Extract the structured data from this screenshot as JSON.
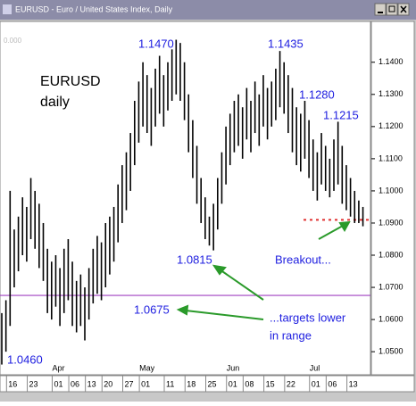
{
  "window_title": "EURUSD - Euro / United States Index, Daily",
  "chart_data": {
    "type": "hilo",
    "title": "EURUSD",
    "subtitle": "daily",
    "color": "#000000",
    "corner_label": "0.000",
    "categories": [
      null,
      null,
      "16",
      null,
      null,
      null,
      null,
      "23",
      null,
      null,
      null,
      null,
      null,
      "01",
      null,
      null,
      null,
      "06",
      null,
      null,
      null,
      "13",
      null,
      null,
      null,
      "20",
      null,
      null,
      null,
      null,
      "27",
      null,
      null,
      null,
      "01",
      null,
      null,
      null,
      null,
      null,
      "11",
      null,
      null,
      null,
      null,
      "18",
      null,
      null,
      null,
      null,
      "25",
      null,
      null,
      null,
      null,
      "01",
      null,
      null,
      null,
      "08",
      null,
      null,
      null,
      null,
      "15",
      null,
      null,
      null,
      null,
      "22",
      null,
      null,
      null,
      null,
      null,
      "01",
      null,
      null,
      null,
      "06",
      null,
      null,
      null,
      null,
      "13",
      null,
      null,
      null
    ],
    "months": [
      null,
      null,
      null,
      null,
      null,
      null,
      null,
      null,
      null,
      null,
      null,
      null,
      null,
      "Apr",
      null,
      null,
      null,
      null,
      null,
      null,
      null,
      null,
      null,
      null,
      null,
      null,
      null,
      null,
      null,
      null,
      null,
      null,
      null,
      null,
      "May",
      null,
      null,
      null,
      null,
      null,
      null,
      null,
      null,
      null,
      null,
      null,
      null,
      null,
      null,
      null,
      null,
      null,
      null,
      null,
      null,
      "Jun",
      null,
      null,
      null,
      null,
      null,
      null,
      null,
      null,
      null,
      null,
      null,
      null,
      null,
      null,
      null,
      null,
      null,
      null,
      null,
      "Jul",
      null,
      null,
      null,
      null,
      null,
      null,
      null,
      null,
      null,
      null,
      null,
      null
    ],
    "high": [
      1.062,
      1.066,
      1.1,
      1.088,
      1.092,
      1.098,
      1.095,
      1.104,
      1.1,
      1.096,
      1.09,
      1.082,
      1.078,
      1.08,
      1.076,
      1.082,
      1.085,
      1.078,
      1.072,
      1.074,
      1.07,
      1.076,
      1.082,
      1.086,
      1.084,
      1.09,
      1.092,
      1.095,
      1.102,
      1.108,
      1.112,
      1.118,
      1.128,
      1.134,
      1.14,
      1.136,
      1.132,
      1.138,
      1.142,
      1.136,
      1.14,
      1.144,
      1.147,
      1.146,
      1.14,
      1.13,
      1.122,
      1.114,
      1.104,
      1.098,
      1.092,
      1.096,
      1.104,
      1.112,
      1.12,
      1.124,
      1.128,
      1.13,
      1.126,
      1.132,
      1.128,
      1.134,
      1.13,
      1.136,
      1.132,
      1.134,
      1.138,
      1.1435,
      1.14,
      1.136,
      1.132,
      1.126,
      1.124,
      1.128,
      1.122,
      1.116,
      1.112,
      1.118,
      1.114,
      1.11,
      1.116,
      1.1215,
      1.114,
      1.108,
      1.104,
      1.1,
      1.097,
      1.095
    ],
    "low": [
      1.046,
      1.05,
      1.058,
      1.07,
      1.075,
      1.08,
      1.078,
      1.085,
      1.082,
      1.076,
      1.072,
      1.062,
      1.06,
      1.064,
      1.058,
      1.062,
      1.066,
      1.058,
      1.056,
      1.058,
      1.0535,
      1.06,
      1.065,
      1.068,
      1.066,
      1.07,
      1.074,
      1.078,
      1.084,
      1.09,
      1.094,
      1.1,
      1.108,
      1.115,
      1.12,
      1.118,
      1.114,
      1.12,
      1.124,
      1.12,
      1.125,
      1.128,
      1.13,
      1.128,
      1.122,
      1.112,
      1.104,
      1.096,
      1.09,
      1.085,
      1.083,
      1.0815,
      1.088,
      1.096,
      1.102,
      1.108,
      1.112,
      1.114,
      1.11,
      1.116,
      1.112,
      1.118,
      1.114,
      1.12,
      1.116,
      1.12,
      1.122,
      1.126,
      1.124,
      1.118,
      1.112,
      1.108,
      1.106,
      1.11,
      1.104,
      1.1,
      1.097,
      1.102,
      1.1,
      1.098,
      1.1,
      1.102,
      1.096,
      1.094,
      1.092,
      1.09,
      1.09,
      1.089
    ],
    "ylim": [
      1.0456,
      1.1477
    ],
    "yticks": [
      {
        "value": 1.14,
        "label": "1.1400"
      },
      {
        "value": 1.13,
        "label": "1.1300"
      },
      {
        "value": 1.12,
        "label": "1.1200"
      },
      {
        "value": 1.11,
        "label": "1.1100"
      },
      {
        "value": 1.1,
        "label": "1.1000"
      },
      {
        "value": 1.09,
        "label": "1.0900"
      },
      {
        "value": 1.08,
        "label": "1.0800"
      },
      {
        "value": 1.07,
        "label": "1.0700"
      },
      {
        "value": 1.06,
        "label": "1.0600"
      },
      {
        "value": 1.05,
        "label": "1.0500"
      }
    ],
    "grid": false,
    "hlines": [
      {
        "value": 1.0675,
        "color": "#a040c0",
        "style": "solid"
      },
      {
        "value": 1.091,
        "color": "#e03030",
        "style": "dotted"
      }
    ],
    "annotations": [
      "1.1470",
      "1.1435",
      "1.1280",
      "1.1215",
      "1.0815",
      "1.0675",
      "1.0460",
      "Breakout...",
      "...targets lower",
      "in range"
    ]
  }
}
